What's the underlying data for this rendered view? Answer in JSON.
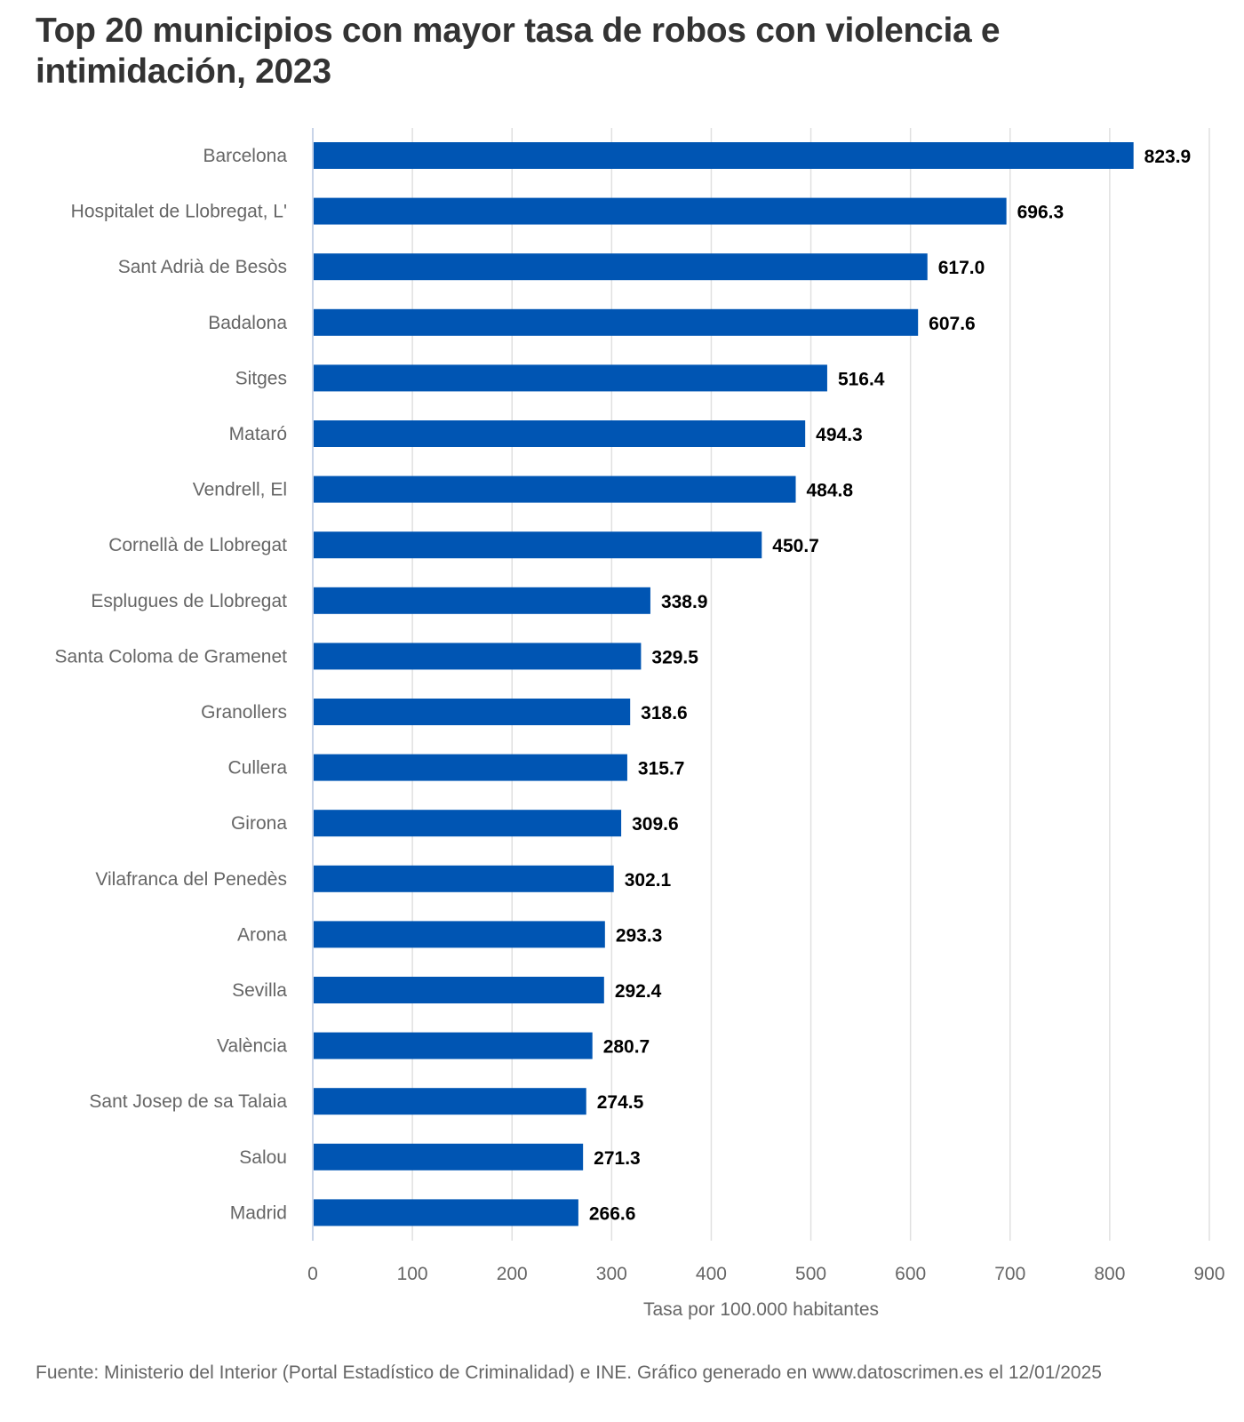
{
  "title": "Top 20 municipios con mayor tasa de robos con violencia e intimidación, 2023",
  "footer": "Fuente: Ministerio del Interior (Portal Estadístico de Criminalidad) e INE. Gráfico generado en www.datoscrimen.es el 12/01/2025",
  "colors": {
    "bar": "#0055B3",
    "grid": "#e0e0e0",
    "axis": "#c8d4e8",
    "title": "#333333",
    "label": "#666666",
    "value": "#000000"
  },
  "chart_data": {
    "type": "bar",
    "orientation": "horizontal",
    "title": "Top 20 municipios con mayor tasa de robos con violencia e intimidación, 2023",
    "xlabel": "Tasa por 100.000 habitantes",
    "ylabel": "",
    "xlim": [
      0,
      900
    ],
    "xticks": [
      0,
      100,
      200,
      300,
      400,
      500,
      600,
      700,
      800,
      900
    ],
    "grid": true,
    "legend": "none",
    "categories": [
      "Barcelona",
      "Hospitalet de Llobregat, L'",
      "Sant Adrià de Besòs",
      "Badalona",
      "Sitges",
      "Mataró",
      "Vendrell, El",
      "Cornellà de Llobregat",
      "Esplugues de Llobregat",
      "Santa Coloma de Gramenet",
      "Granollers",
      "Cullera",
      "Girona",
      "Vilafranca del Penedès",
      "Arona",
      "Sevilla",
      "València",
      "Sant Josep de sa Talaia",
      "Salou",
      "Madrid"
    ],
    "values": [
      823.9,
      696.3,
      617.0,
      607.6,
      516.4,
      494.3,
      484.8,
      450.7,
      338.9,
      329.5,
      318.6,
      315.7,
      309.6,
      302.1,
      293.3,
      292.4,
      280.7,
      274.5,
      271.3,
      266.6
    ],
    "value_labels": [
      "823.9",
      "696.3",
      "617.0",
      "607.6",
      "516.4",
      "494.3",
      "484.8",
      "450.7",
      "338.9",
      "329.5",
      "318.6",
      "315.7",
      "309.6",
      "302.1",
      "293.3",
      "292.4",
      "280.7",
      "274.5",
      "271.3",
      "266.6"
    ]
  }
}
